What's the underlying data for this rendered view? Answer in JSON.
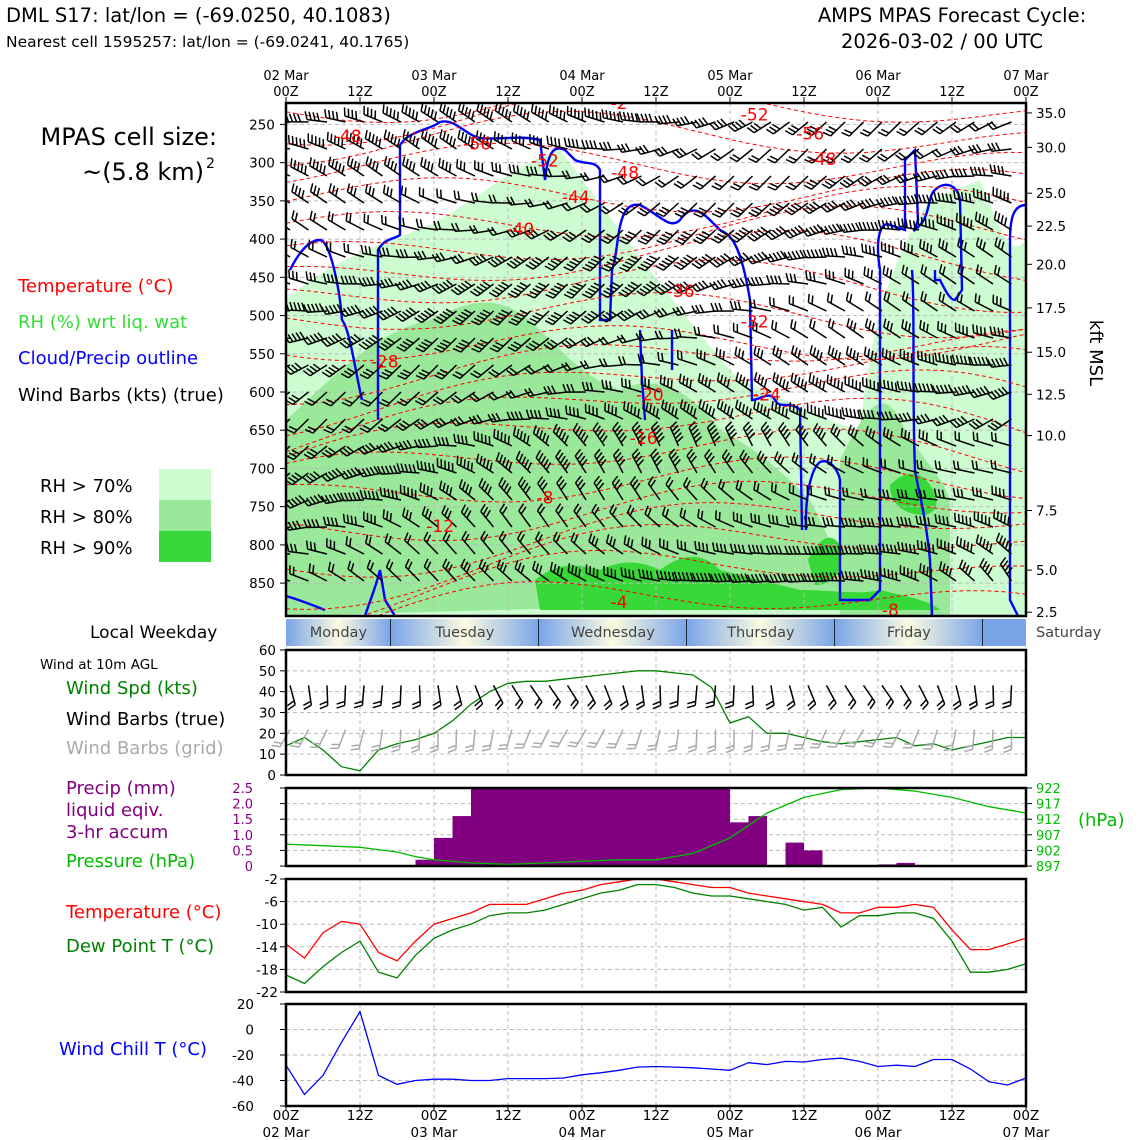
{
  "header": {
    "title_left": "DML S17: lat/lon = (-69.0250, 40.1083)",
    "subtitle_left": "Nearest cell 1595257: lat/lon = (-69.0241, 40.1765)",
    "title_right_1": "AMPS MPAS Forecast Cycle:",
    "title_right_2": "2026-03-02 / 00 UTC"
  },
  "sidebar": {
    "cell_size_label": "MPAS cell size:",
    "cell_size_value": "~(5.8 km)",
    "cell_size_exp": "2",
    "legend_temperature": "Temperature (°C)",
    "legend_rh": "RH (%) wrt liq. wat",
    "legend_cloud": "Cloud/Precip outline",
    "legend_wind": "Wind Barbs (kts) (true)",
    "rh_levels": [
      {
        "label": "RH > 70%",
        "color": "#ccfcd0"
      },
      {
        "label": "RH > 80%",
        "color": "#9ae89a"
      },
      {
        "label": "RH > 90%",
        "color": "#38d838"
      }
    ],
    "weekday_label": "Local Weekday",
    "wind_title": "Wind at 10m AGL",
    "wind_spd_label": "Wind Spd (kts)",
    "wind_barbs_true_label": "Wind Barbs (true)",
    "wind_barbs_grid_label": "Wind Barbs (grid)",
    "precip_label_1": "Precip (mm)",
    "precip_label_2": "liquid eqiv.",
    "precip_label_3": "3-hr accum",
    "pressure_label": "Pressure (hPa)",
    "temp_label": "Temperature (°C)",
    "dew_label": "Dew Point T (°C)",
    "windchill_label": "Wind Chill T (°C)"
  },
  "colors": {
    "temperature": "#ff0000",
    "rh": "#33dd33",
    "cloud": "#0000ff",
    "wind": "#000000",
    "wind_grid": "#aaaaaa",
    "precip": "#800080",
    "pressure": "#00bb00",
    "dew": "#008000",
    "windchill": "#0000ff"
  },
  "chart_data": [
    {
      "type": "heatmap",
      "name": "cross-section",
      "top_axis": {
        "dates": [
          "02 Mar",
          "03 Mar",
          "04 Mar",
          "05 Mar",
          "06 Mar",
          "07 Mar"
        ],
        "tick_labels": [
          "00Z",
          "12Z",
          "00Z",
          "12Z",
          "00Z",
          "12Z",
          "00Z",
          "12Z",
          "00Z",
          "12Z",
          "00Z"
        ]
      },
      "x_hours": [
        0,
        120
      ],
      "pressure_ticks": [
        250,
        300,
        350,
        400,
        450,
        500,
        550,
        600,
        650,
        700,
        750,
        800,
        850
      ],
      "ylim_hpa": [
        222,
        893
      ],
      "height_ticks_kft": [
        "35.0",
        "30.0",
        "25.0",
        "22.5",
        "20.0",
        "17.5",
        "15.0",
        "12.5",
        "10.0",
        "7.5",
        "5.0",
        "2.5"
      ],
      "height_tick_pressure": [
        235,
        280,
        340,
        383,
        433,
        490,
        548,
        603,
        657,
        755,
        833,
        888
      ],
      "right_ylabel": "kft MSL",
      "temperature_labels": [
        {
          "text": "-48",
          "h": 10,
          "p": 265
        },
        {
          "text": "-56",
          "h": 31,
          "p": 275
        },
        {
          "text": "-52",
          "h": 42,
          "p": 297
        },
        {
          "text": "-48",
          "h": 55,
          "p": 313
        },
        {
          "text": "-44",
          "h": 47,
          "p": 345
        },
        {
          "text": "-40",
          "h": 38,
          "p": 387
        },
        {
          "text": "-36",
          "h": 64,
          "p": 468
        },
        {
          "text": "-32",
          "h": 76,
          "p": 508
        },
        {
          "text": "-28",
          "h": 16,
          "p": 560
        },
        {
          "text": "-24",
          "h": 78,
          "p": 603
        },
        {
          "text": "-20",
          "h": 59,
          "p": 603
        },
        {
          "text": "-16",
          "h": 58,
          "p": 660
        },
        {
          "text": "-12",
          "h": 25,
          "p": 775
        },
        {
          "text": "-8",
          "h": 42,
          "p": 738
        },
        {
          "text": "-4",
          "h": 54,
          "p": 875
        },
        {
          "text": "-52",
          "h": 76,
          "p": 237
        },
        {
          "text": "-56",
          "h": 85,
          "p": 262
        },
        {
          "text": "-48",
          "h": 87,
          "p": 295
        },
        {
          "text": "-2",
          "h": 54,
          "p": 222
        },
        {
          "text": "-8",
          "h": 98,
          "p": 885
        }
      ],
      "weekdays": [
        {
          "label": "Monday",
          "start": 0,
          "end": 17
        },
        {
          "label": "Tuesday",
          "start": 17,
          "end": 41
        },
        {
          "label": "Wednesday",
          "start": 41,
          "end": 65
        },
        {
          "label": "Thursday",
          "start": 65,
          "end": 89
        },
        {
          "label": "Friday",
          "start": 89,
          "end": 113
        },
        {
          "label": "Saturday",
          "start": 113,
          "end": 120
        }
      ]
    },
    {
      "type": "line",
      "name": "wind-speed",
      "x_hours": [
        0,
        3,
        6,
        9,
        12,
        15,
        18,
        21,
        24,
        27,
        30,
        33,
        36,
        39,
        42,
        45,
        48,
        51,
        54,
        57,
        60,
        63,
        66,
        69,
        72,
        75,
        78,
        81,
        84,
        87,
        90,
        93,
        96,
        99,
        102,
        105,
        108,
        111,
        114,
        117,
        120
      ],
      "series": [
        {
          "name": "Wind Spd (kts)",
          "values": [
            14,
            18,
            12,
            4,
            2,
            12,
            15,
            17,
            20,
            26,
            34,
            40,
            44,
            45,
            45,
            46,
            47,
            48,
            49,
            50,
            50,
            49,
            48,
            42,
            25,
            28,
            20,
            20,
            18,
            16,
            15,
            16,
            17,
            18,
            14,
            15,
            12,
            14,
            16,
            18,
            18
          ]
        }
      ],
      "ylim": [
        0,
        60
      ],
      "yticks": [
        0,
        10,
        20,
        30,
        40,
        50,
        60
      ],
      "barbs_true_level": 43,
      "barbs_grid_level": 18
    },
    {
      "type": "bar",
      "name": "precip-pressure",
      "bar_width_hours": 3,
      "precip_x_start_hours": [
        21,
        24,
        27,
        30,
        33,
        36,
        39,
        42,
        45,
        48,
        51,
        54,
        57,
        60,
        63,
        66,
        69,
        72,
        75,
        78,
        81,
        84,
        87,
        90,
        93,
        96,
        99
      ],
      "precip_values": [
        0.2,
        0.9,
        1.6,
        2.5,
        2.5,
        2.5,
        2.5,
        2.5,
        2.5,
        2.5,
        2.5,
        2.5,
        2.5,
        2.5,
        2.5,
        2.5,
        2.5,
        1.4,
        1.6,
        0,
        0.75,
        0.5,
        0,
        0,
        0,
        0.05,
        0.1
      ],
      "precip_ylim": [
        0,
        2.5
      ],
      "precip_yticks": [
        "0",
        "0.5",
        "1.0",
        "1.5",
        "2.0",
        "2.5"
      ],
      "pressure_x_hours": [
        0,
        6,
        12,
        18,
        21,
        24,
        30,
        36,
        42,
        48,
        54,
        60,
        66,
        72,
        78,
        84,
        90,
        96,
        102,
        108,
        114,
        120
      ],
      "pressure_values": [
        904,
        903.5,
        903,
        901.5,
        900,
        899,
        898,
        897.5,
        898,
        898.5,
        899,
        899,
        901,
        906,
        914,
        919,
        921.5,
        922,
        921,
        919,
        916,
        914
      ],
      "pressure_ylim": [
        897,
        922
      ],
      "pressure_yticks": [
        "922",
        "917",
        "912",
        "907",
        "902",
        "897"
      ],
      "pressure_unit": "(hPa)"
    },
    {
      "type": "line",
      "name": "temperature-dewpoint",
      "x_hours": [
        0,
        3,
        6,
        9,
        12,
        15,
        18,
        21,
        24,
        27,
        30,
        33,
        36,
        39,
        42,
        45,
        48,
        51,
        54,
        57,
        60,
        63,
        66,
        69,
        72,
        75,
        78,
        81,
        84,
        87,
        90,
        93,
        96,
        99,
        102,
        105,
        108,
        111,
        114,
        117,
        120
      ],
      "series": [
        {
          "name": "Temperature (°C)",
          "values": [
            -13.5,
            -16,
            -11.5,
            -9.5,
            -10,
            -15,
            -16.5,
            -13,
            -10,
            -9,
            -8,
            -6.5,
            -6.5,
            -6.5,
            -5.5,
            -4.5,
            -4,
            -3,
            -2.5,
            -2,
            -2,
            -2.5,
            -3,
            -3.5,
            -3.5,
            -4.5,
            -5,
            -5.5,
            -6,
            -6.5,
            -8,
            -8,
            -7,
            -7,
            -6.5,
            -7,
            -11,
            -14.5,
            -14.5,
            -13.5,
            -12.5
          ]
        },
        {
          "name": "Dew Point T (°C)",
          "values": [
            -19,
            -20.5,
            -17.5,
            -15,
            -13,
            -18.5,
            -19.5,
            -15.5,
            -12.5,
            -11,
            -10,
            -8.5,
            -8,
            -8,
            -7.5,
            -6.5,
            -5.5,
            -4.5,
            -4,
            -3,
            -3,
            -3.5,
            -4.5,
            -5,
            -5,
            -5.5,
            -6,
            -6.5,
            -7.5,
            -7,
            -10.5,
            -8.5,
            -8.5,
            -8,
            -8,
            -9,
            -13,
            -18.5,
            -18.5,
            -18,
            -17
          ]
        }
      ],
      "ylim": [
        -22,
        -2
      ],
      "yticks": [
        -2,
        -6,
        -10,
        -14,
        -18,
        -22
      ]
    },
    {
      "type": "line",
      "name": "wind-chill",
      "x_hours": [
        0,
        3,
        6,
        9,
        12,
        15,
        18,
        21,
        24,
        27,
        30,
        33,
        36,
        39,
        42,
        45,
        48,
        51,
        54,
        57,
        60,
        63,
        66,
        69,
        72,
        75,
        78,
        81,
        84,
        87,
        90,
        93,
        96,
        99,
        102,
        105,
        108,
        111,
        114,
        117,
        120
      ],
      "series": [
        {
          "name": "Wind Chill T (°C)",
          "values": [
            -28,
            -51,
            -36,
            -10,
            14,
            -36,
            -43,
            -40,
            -39,
            -39,
            -40,
            -40,
            -38.5,
            -38.5,
            -38.5,
            -38,
            -35.5,
            -34,
            -32,
            -29.5,
            -29,
            -29.5,
            -30,
            -31,
            -32,
            -26,
            -27.5,
            -25,
            -25.5,
            -23.5,
            -22.5,
            -25,
            -29,
            -28,
            -29,
            -23.5,
            -23.5,
            -31,
            -41,
            -43.5,
            -38
          ]
        }
      ],
      "ylim": [
        -60,
        20
      ],
      "yticks": [
        20,
        0,
        -20,
        -40,
        -60
      ]
    }
  ],
  "bottom_axis": {
    "tick_labels": [
      "00Z",
      "12Z",
      "00Z",
      "12Z",
      "00Z",
      "12Z",
      "00Z",
      "12Z",
      "00Z",
      "12Z",
      "00Z"
    ],
    "dates": [
      "02 Mar",
      "03 Mar",
      "04 Mar",
      "05 Mar",
      "06 Mar",
      "07 Mar"
    ]
  }
}
